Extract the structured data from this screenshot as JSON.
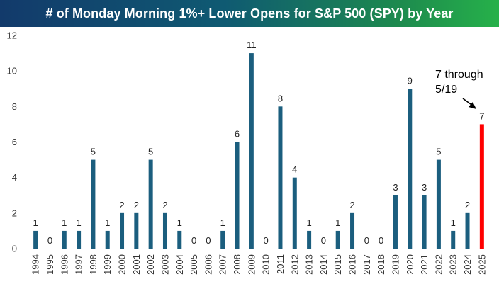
{
  "chart_data": {
    "type": "bar",
    "title": "# of Monday Morning 1%+ Lower Opens for S&P 500 (SPY) by Year",
    "xlabel": "",
    "ylabel": "",
    "ylim": [
      0,
      12
    ],
    "yticks": [
      0,
      2,
      4,
      6,
      8,
      10,
      12
    ],
    "grid": false,
    "categories": [
      "1994",
      "1995",
      "1996",
      "1997",
      "1998",
      "1999",
      "2000",
      "2001",
      "2002",
      "2003",
      "2004",
      "2005",
      "2006",
      "2007",
      "2008",
      "2009",
      "2010",
      "2011",
      "2012",
      "2013",
      "2014",
      "2015",
      "2016",
      "2017",
      "2018",
      "2019",
      "2020",
      "2021",
      "2022",
      "2023",
      "2024",
      "2025"
    ],
    "values": [
      1,
      0,
      1,
      1,
      5,
      1,
      2,
      2,
      5,
      2,
      1,
      0,
      0,
      1,
      6,
      11,
      0,
      8,
      4,
      1,
      0,
      1,
      2,
      0,
      0,
      3,
      9,
      3,
      5,
      1,
      2,
      7
    ],
    "bar_color": "#1b5e7e",
    "highlight_color": "#ff0000",
    "highlight_category": "2025",
    "annotation": {
      "line1": "7 through",
      "line2": "5/19"
    }
  }
}
